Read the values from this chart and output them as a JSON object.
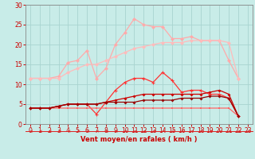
{
  "bg_color": "#c8ece8",
  "grid_color": "#a8d4d0",
  "xlabel": "Vent moyen/en rafales ( km/h )",
  "xlabel_color": "#cc0000",
  "tick_color": "#cc0000",
  "xlim": [
    -0.5,
    23.5
  ],
  "ylim": [
    0,
    30
  ],
  "yticks": [
    0,
    5,
    10,
    15,
    20,
    25,
    30
  ],
  "xticks": [
    0,
    1,
    2,
    3,
    4,
    5,
    6,
    7,
    8,
    9,
    10,
    11,
    12,
    13,
    14,
    15,
    16,
    17,
    18,
    19,
    20,
    21,
    22,
    23
  ],
  "series": {
    "x_main": [
      0,
      1,
      2,
      3,
      4,
      5,
      6,
      7,
      8,
      9,
      10,
      11,
      12,
      13,
      14,
      15,
      16,
      17,
      18,
      19,
      20,
      21,
      22
    ],
    "line1_lightpink_jagged": [
      11.5,
      11.5,
      11.5,
      12.0,
      15.5,
      16.0,
      18.5,
      11.5,
      14.0,
      20.0,
      23.0,
      26.5,
      25.0,
      24.5,
      24.5,
      21.5,
      21.5,
      22.0,
      21.0,
      21.0,
      21.0,
      16.0,
      11.5
    ],
    "line2_lightpink_smooth": [
      11.5,
      11.5,
      11.5,
      11.5,
      13.0,
      14.0,
      15.0,
      15.0,
      16.0,
      17.0,
      18.0,
      19.0,
      19.5,
      20.0,
      20.5,
      20.5,
      20.5,
      21.0,
      21.0,
      21.0,
      21.0,
      20.5,
      11.5
    ],
    "line3_red_jagged": [
      4.0,
      4.0,
      4.0,
      4.5,
      5.0,
      5.0,
      5.0,
      2.5,
      5.5,
      8.5,
      10.5,
      11.5,
      11.5,
      10.5,
      13.0,
      11.0,
      8.0,
      8.5,
      8.5,
      7.5,
      7.5,
      6.5,
      2.0
    ],
    "line4_darkred_smooth": [
      4.0,
      4.0,
      4.0,
      4.5,
      5.0,
      5.0,
      5.0,
      5.0,
      5.5,
      6.0,
      6.5,
      7.0,
      7.5,
      7.5,
      7.5,
      7.5,
      7.5,
      7.5,
      7.5,
      8.0,
      8.5,
      7.5,
      2.0
    ],
    "line5_darkred_flat": [
      4.0,
      4.0,
      4.0,
      4.5,
      5.0,
      5.0,
      5.0,
      5.0,
      5.5,
      5.5,
      5.5,
      5.5,
      6.0,
      6.0,
      6.0,
      6.0,
      6.5,
      6.5,
      6.5,
      7.0,
      7.0,
      6.5,
      2.0
    ],
    "line6_flat_red": [
      4.0,
      4.0,
      4.0,
      4.0,
      4.0,
      4.0,
      4.0,
      4.0,
      4.0,
      4.0,
      4.0,
      4.0,
      4.0,
      4.0,
      4.0,
      4.0,
      4.0,
      4.0,
      4.0,
      4.0,
      4.0,
      4.0,
      2.0
    ]
  },
  "colors": {
    "c1": "#ffaaaa",
    "c2": "#ffbbbb",
    "c3": "#ff3333",
    "c4": "#cc0000",
    "c5": "#990000",
    "c6": "#ff6666"
  },
  "arrow_color": "#dd2222",
  "spine_color": "#888888"
}
